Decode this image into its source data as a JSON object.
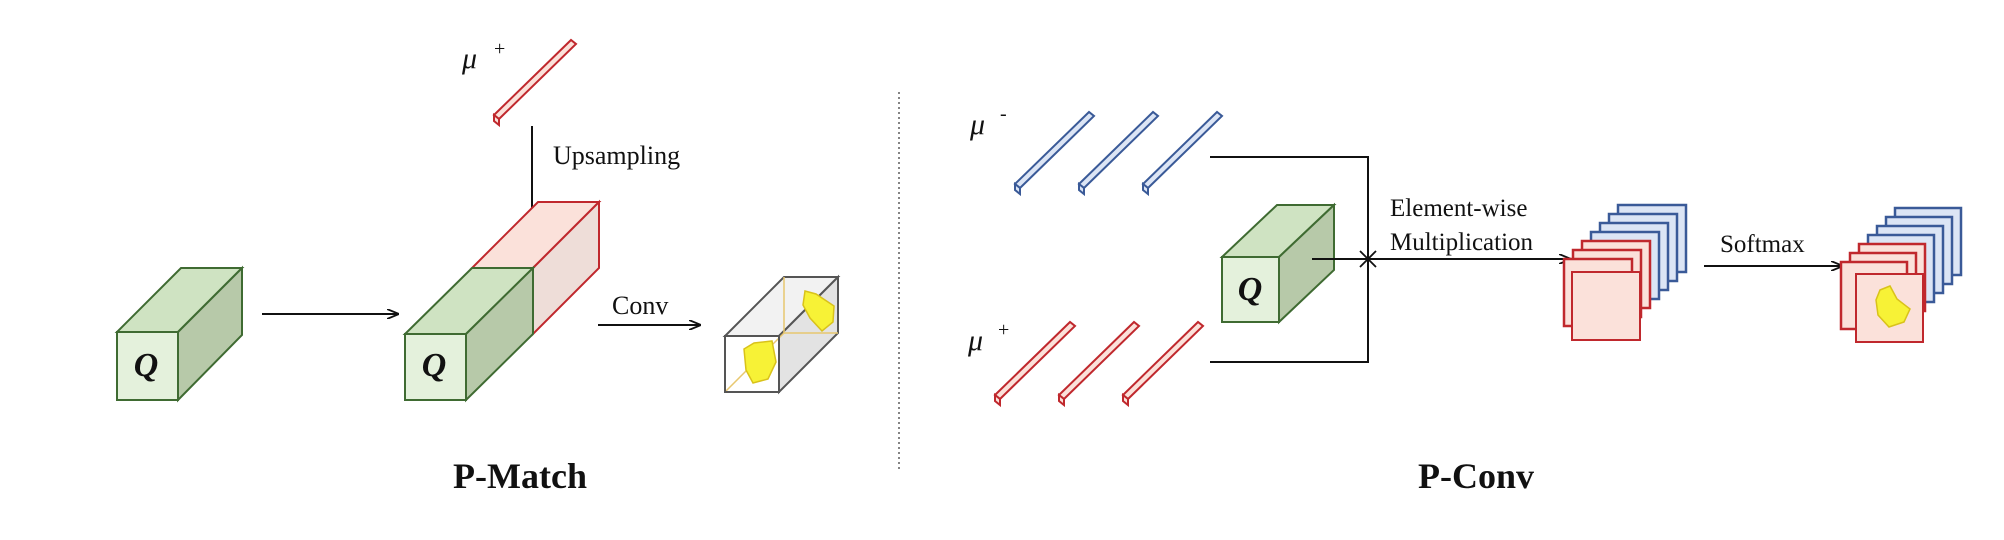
{
  "labels": {
    "mu_plus": "μ",
    "mu_plus_sup": "+",
    "mu_minus": "μ",
    "mu_minus_sup": "-",
    "mu_plus_right": "μ",
    "mu_plus_right_sup": "+",
    "upsampling": "Upsampling",
    "conv": "Conv",
    "q": "Q",
    "element_wise_line1": "Element-wise",
    "element_wise_line2": "Multiplication",
    "softmax": "Softmax"
  },
  "panels": {
    "left_title": "P-Match",
    "right_title": "P-Conv"
  },
  "colors": {
    "green_front": "#e4f1dc",
    "green_top": "#cfe3c2",
    "green_side": "#b7c9a9",
    "green_stroke": "#3f6b32",
    "red_stroke": "#c0282d",
    "red_fill": "#fbe1da",
    "blue_stroke": "#3a5a98",
    "blue_fill": "#dce5f5",
    "yellow": "#f7f236"
  }
}
